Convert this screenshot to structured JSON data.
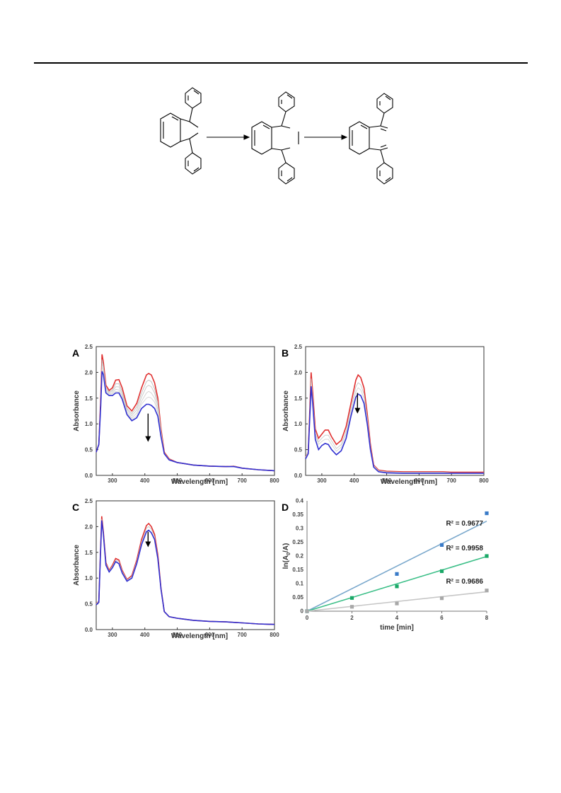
{
  "scheme": {
    "arrow_count": 2
  },
  "chart_data": [
    {
      "panel": "A",
      "type": "line",
      "xlabel": "Wavelength [nm]",
      "ylabel": "Absorbance",
      "xlim": [
        250,
        800
      ],
      "ylim": [
        0,
        2.5
      ],
      "xticks": [
        300,
        400,
        500,
        600,
        700,
        800
      ],
      "yticks": [
        0.0,
        0.5,
        1.0,
        1.5,
        2.0,
        2.5
      ],
      "series": [
        {
          "color": "#e03030",
          "x": [
            250,
            258,
            264,
            268,
            272,
            280,
            290,
            300,
            310,
            320,
            330,
            345,
            360,
            375,
            390,
            405,
            412,
            420,
            430,
            440,
            450,
            460,
            475,
            500,
            550,
            600,
            650,
            675,
            700,
            750,
            800
          ],
          "y": [
            0.45,
            0.6,
            1.5,
            2.35,
            2.2,
            1.75,
            1.65,
            1.7,
            1.85,
            1.86,
            1.7,
            1.35,
            1.25,
            1.4,
            1.7,
            1.95,
            1.98,
            1.95,
            1.8,
            1.5,
            0.9,
            0.45,
            0.32,
            0.25,
            0.2,
            0.18,
            0.17,
            0.18,
            0.14,
            0.11,
            0.09
          ]
        },
        {
          "color": "#bdbdbd",
          "x": [
            250,
            258,
            264,
            268,
            272,
            280,
            290,
            300,
            310,
            320,
            330,
            345,
            360,
            375,
            390,
            405,
            412,
            420,
            430,
            440,
            450,
            460,
            475,
            500,
            550,
            600,
            650,
            675,
            700,
            750,
            800
          ],
          "y": [
            0.45,
            0.6,
            1.45,
            2.25,
            2.12,
            1.7,
            1.62,
            1.66,
            1.78,
            1.78,
            1.63,
            1.3,
            1.2,
            1.33,
            1.6,
            1.82,
            1.85,
            1.82,
            1.68,
            1.42,
            0.86,
            0.44,
            0.31,
            0.25,
            0.2,
            0.18,
            0.17,
            0.18,
            0.14,
            0.11,
            0.09
          ]
        },
        {
          "color": "#c8c8c8",
          "x": [
            250,
            258,
            264,
            268,
            272,
            280,
            290,
            300,
            310,
            320,
            330,
            345,
            360,
            375,
            390,
            405,
            412,
            420,
            430,
            440,
            450,
            460,
            475,
            500,
            550,
            600,
            650,
            675,
            700,
            750,
            800
          ],
          "y": [
            0.45,
            0.6,
            1.42,
            2.18,
            2.08,
            1.67,
            1.6,
            1.63,
            1.72,
            1.72,
            1.58,
            1.27,
            1.16,
            1.27,
            1.52,
            1.72,
            1.75,
            1.72,
            1.6,
            1.35,
            0.83,
            0.43,
            0.31,
            0.25,
            0.2,
            0.18,
            0.17,
            0.18,
            0.14,
            0.11,
            0.09
          ]
        },
        {
          "color": "#d0d0d0",
          "x": [
            250,
            258,
            264,
            268,
            272,
            280,
            290,
            300,
            310,
            320,
            330,
            345,
            360,
            375,
            390,
            405,
            412,
            420,
            430,
            440,
            450,
            460,
            475,
            500,
            550,
            600,
            650,
            675,
            700,
            750,
            800
          ],
          "y": [
            0.45,
            0.6,
            1.4,
            2.1,
            2.04,
            1.64,
            1.58,
            1.6,
            1.67,
            1.66,
            1.53,
            1.23,
            1.12,
            1.21,
            1.44,
            1.6,
            1.63,
            1.6,
            1.5,
            1.28,
            0.8,
            0.42,
            0.3,
            0.25,
            0.2,
            0.18,
            0.17,
            0.18,
            0.14,
            0.11,
            0.09
          ]
        },
        {
          "color": "#d8d8d8",
          "x": [
            250,
            258,
            264,
            268,
            272,
            280,
            290,
            300,
            310,
            320,
            330,
            345,
            360,
            375,
            390,
            405,
            412,
            420,
            430,
            440,
            450,
            460,
            475,
            500,
            550,
            600,
            650,
            675,
            700,
            750,
            800
          ],
          "y": [
            0.45,
            0.6,
            1.38,
            2.05,
            2.0,
            1.62,
            1.57,
            1.58,
            1.63,
            1.62,
            1.5,
            1.2,
            1.09,
            1.16,
            1.38,
            1.5,
            1.52,
            1.5,
            1.42,
            1.22,
            0.78,
            0.42,
            0.3,
            0.25,
            0.2,
            0.18,
            0.17,
            0.18,
            0.14,
            0.11,
            0.09
          ]
        },
        {
          "color": "#3030d0",
          "x": [
            250,
            258,
            264,
            268,
            272,
            280,
            290,
            300,
            310,
            320,
            330,
            345,
            360,
            375,
            390,
            405,
            412,
            420,
            430,
            440,
            450,
            460,
            475,
            500,
            550,
            600,
            650,
            675,
            700,
            750,
            800
          ],
          "y": [
            0.45,
            0.6,
            1.35,
            2.02,
            1.96,
            1.6,
            1.55,
            1.55,
            1.6,
            1.6,
            1.48,
            1.18,
            1.06,
            1.12,
            1.3,
            1.38,
            1.38,
            1.36,
            1.3,
            1.15,
            0.75,
            0.42,
            0.3,
            0.25,
            0.2,
            0.18,
            0.17,
            0.17,
            0.14,
            0.11,
            0.09
          ]
        }
      ],
      "arrow": {
        "x": 410,
        "y_from": 1.2,
        "y_to": 0.65
      }
    },
    {
      "panel": "B",
      "type": "line",
      "xlabel": "Wavelength [nm]",
      "ylabel": "Absorbance",
      "xlim": [
        250,
        800
      ],
      "ylim": [
        0,
        2.5
      ],
      "xticks": [
        300,
        400,
        500,
        600,
        700,
        800
      ],
      "yticks": [
        0.0,
        0.5,
        1.0,
        1.5,
        2.0,
        2.5
      ],
      "series": [
        {
          "color": "#e03030",
          "x": [
            250,
            258,
            263,
            267,
            272,
            280,
            290,
            300,
            310,
            320,
            330,
            345,
            360,
            375,
            390,
            405,
            412,
            420,
            430,
            440,
            450,
            460,
            475,
            500,
            550,
            600,
            650,
            675,
            700,
            750,
            800
          ],
          "y": [
            0.35,
            0.45,
            1.3,
            2.0,
            1.6,
            0.9,
            0.72,
            0.8,
            0.88,
            0.88,
            0.75,
            0.6,
            0.68,
            0.95,
            1.4,
            1.85,
            1.95,
            1.9,
            1.7,
            1.2,
            0.6,
            0.2,
            0.1,
            0.08,
            0.07,
            0.07,
            0.07,
            0.07,
            0.06,
            0.06,
            0.06
          ]
        },
        {
          "color": "#c8c8c8",
          "x": [
            250,
            258,
            263,
            267,
            272,
            280,
            290,
            300,
            310,
            320,
            330,
            345,
            360,
            375,
            390,
            405,
            412,
            420,
            430,
            440,
            450,
            460,
            475,
            500,
            550,
            600,
            650,
            675,
            700,
            750,
            800
          ],
          "y": [
            0.35,
            0.45,
            1.25,
            1.88,
            1.5,
            0.82,
            0.65,
            0.72,
            0.78,
            0.78,
            0.67,
            0.52,
            0.6,
            0.86,
            1.3,
            1.72,
            1.8,
            1.76,
            1.58,
            1.12,
            0.56,
            0.19,
            0.09,
            0.07,
            0.06,
            0.06,
            0.06,
            0.06,
            0.05,
            0.05,
            0.05
          ]
        },
        {
          "color": "#d4d4d4",
          "x": [
            250,
            258,
            263,
            267,
            272,
            280,
            290,
            300,
            310,
            320,
            330,
            345,
            360,
            375,
            390,
            405,
            412,
            420,
            430,
            440,
            450,
            460,
            475,
            500,
            550,
            600,
            650,
            675,
            700,
            750,
            800
          ],
          "y": [
            0.35,
            0.45,
            1.2,
            1.8,
            1.45,
            0.78,
            0.6,
            0.66,
            0.7,
            0.7,
            0.6,
            0.47,
            0.55,
            0.8,
            1.22,
            1.62,
            1.7,
            1.66,
            1.5,
            1.06,
            0.53,
            0.18,
            0.08,
            0.06,
            0.05,
            0.05,
            0.05,
            0.05,
            0.05,
            0.05,
            0.05
          ]
        },
        {
          "color": "#3030d0",
          "x": [
            250,
            258,
            263,
            267,
            272,
            280,
            290,
            300,
            310,
            320,
            330,
            345,
            360,
            375,
            390,
            405,
            412,
            420,
            430,
            440,
            450,
            460,
            475,
            500,
            550,
            600,
            650,
            675,
            700,
            750,
            800
          ],
          "y": [
            0.32,
            0.42,
            1.15,
            1.73,
            1.38,
            0.7,
            0.5,
            0.58,
            0.62,
            0.6,
            0.5,
            0.4,
            0.48,
            0.72,
            1.15,
            1.52,
            1.58,
            1.55,
            1.4,
            1.0,
            0.5,
            0.16,
            0.07,
            0.05,
            0.04,
            0.04,
            0.04,
            0.04,
            0.04,
            0.04,
            0.04
          ]
        }
      ],
      "arrow": {
        "x": 410,
        "y_from": 1.6,
        "y_to": 1.2
      }
    },
    {
      "panel": "C",
      "type": "line",
      "xlabel": "Wavelength [nm]",
      "ylabel": "Absorbance",
      "xlim": [
        250,
        800
      ],
      "ylim": [
        0,
        2.5
      ],
      "xticks": [
        300,
        400,
        500,
        600,
        700,
        800
      ],
      "yticks": [
        0.0,
        0.5,
        1.0,
        1.5,
        2.0,
        2.5
      ],
      "series": [
        {
          "color": "#e03030",
          "x": [
            250,
            258,
            263,
            267,
            272,
            280,
            290,
            300,
            310,
            320,
            330,
            345,
            360,
            375,
            390,
            405,
            412,
            420,
            430,
            440,
            450,
            460,
            475,
            500,
            550,
            600,
            650,
            675,
            700,
            750,
            800
          ],
          "y": [
            0.5,
            0.55,
            1.5,
            2.2,
            1.9,
            1.3,
            1.15,
            1.25,
            1.38,
            1.35,
            1.15,
            0.97,
            1.05,
            1.35,
            1.75,
            2.02,
            2.06,
            2.0,
            1.85,
            1.45,
            0.8,
            0.35,
            0.25,
            0.22,
            0.18,
            0.16,
            0.15,
            0.14,
            0.13,
            0.11,
            0.1
          ]
        },
        {
          "color": "#c8c8c8",
          "x": [
            250,
            258,
            263,
            267,
            272,
            280,
            290,
            300,
            310,
            320,
            330,
            345,
            360,
            375,
            390,
            405,
            412,
            420,
            430,
            440,
            450,
            460,
            475,
            500,
            550,
            600,
            650,
            675,
            700,
            750,
            800
          ],
          "y": [
            0.5,
            0.55,
            1.48,
            2.15,
            1.88,
            1.28,
            1.14,
            1.23,
            1.35,
            1.32,
            1.13,
            0.96,
            1.03,
            1.32,
            1.7,
            1.97,
            2.0,
            1.95,
            1.8,
            1.42,
            0.79,
            0.35,
            0.25,
            0.22,
            0.18,
            0.16,
            0.15,
            0.14,
            0.13,
            0.11,
            0.1
          ]
        },
        {
          "color": "#3030d0",
          "x": [
            250,
            258,
            263,
            267,
            272,
            280,
            290,
            300,
            310,
            320,
            330,
            345,
            360,
            375,
            390,
            405,
            412,
            420,
            430,
            440,
            450,
            460,
            475,
            500,
            550,
            600,
            650,
            675,
            700,
            750,
            800
          ],
          "y": [
            0.48,
            0.53,
            1.45,
            2.12,
            1.85,
            1.25,
            1.12,
            1.2,
            1.32,
            1.28,
            1.1,
            0.94,
            1.0,
            1.28,
            1.65,
            1.9,
            1.93,
            1.88,
            1.75,
            1.38,
            0.78,
            0.35,
            0.25,
            0.22,
            0.18,
            0.16,
            0.15,
            0.14,
            0.13,
            0.11,
            0.1
          ]
        }
      ],
      "arrow": {
        "x": 410,
        "y_from": 1.9,
        "y_to": 1.6
      }
    },
    {
      "panel": "D",
      "type": "scatter",
      "xlabel": "time [min]",
      "ylabel": "ln(A",
      "ylabel_sub": "0",
      "ylabel_tail": "/A)",
      "xlim": [
        0,
        8
      ],
      "ylim": [
        0,
        0.4
      ],
      "xticks": [
        0,
        2,
        4,
        6,
        8
      ],
      "yticks": [
        0,
        0.05,
        0.1,
        0.15,
        0.2,
        0.25,
        0.3,
        0.35,
        0.4
      ],
      "series": [
        {
          "color": "#3a7bc8",
          "line_color": "#7aa8cc",
          "x": [
            0,
            4,
            6,
            8
          ],
          "y": [
            0,
            0.135,
            0.24,
            0.355
          ],
          "fit_slope": 0.0408,
          "r2_label": "R² = 0.9677"
        },
        {
          "color": "#1aa867",
          "line_color": "#3cbf88",
          "x": [
            0,
            2,
            4,
            6,
            8
          ],
          "y": [
            0,
            0.048,
            0.09,
            0.145,
            0.2
          ],
          "fit_slope": 0.0248,
          "r2_label": "R² = 0.9958"
        },
        {
          "color": "#a8a8a8",
          "line_color": "#c6c6c6",
          "x": [
            0,
            2,
            4,
            6,
            8
          ],
          "y": [
            0,
            0.016,
            0.028,
            0.047,
            0.075
          ],
          "fit_slope": 0.0088,
          "r2_label": "R² = 0.9686"
        }
      ]
    }
  ]
}
